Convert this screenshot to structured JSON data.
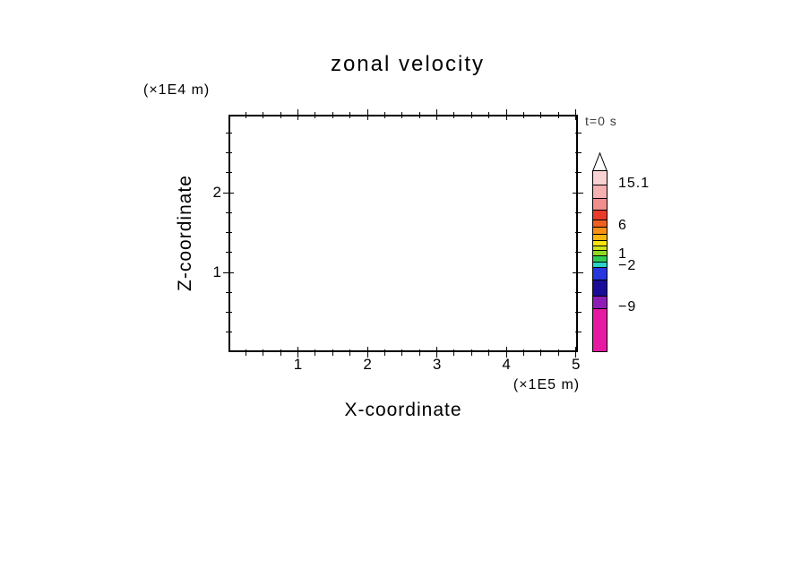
{
  "title": "zonal velocity",
  "annotations": {
    "time_label": "t=0 s",
    "y_unit_label": "(×1E4 m)",
    "x_unit_label": "(×1E5 m)"
  },
  "axes": {
    "x_label": "X-coordinate",
    "y_label": "Z-coordinate"
  },
  "chart_data": {
    "type": "heatmap",
    "title": "zonal velocity",
    "xlabel": "X-coordinate",
    "ylabel": "Z-coordinate",
    "x_unit": "×1E5 m",
    "y_unit": "×1E4 m",
    "xlim": [
      0,
      5.03
    ],
    "ylim": [
      0,
      2.98
    ],
    "x_ticks": [
      1,
      2,
      3,
      4,
      5
    ],
    "y_ticks": [
      1,
      2
    ],
    "x_minor_step": 0.25,
    "y_minor_step": 0.25,
    "time": "t=0 s",
    "field": "blank plot area — no contours or shading visible at t=0",
    "grid": false,
    "legend_position": "right colorbar",
    "colorbar": {
      "tick_labels": [
        "15.1",
        "6",
        "1",
        "−2",
        "−9"
      ],
      "segments": [
        {
          "color": "#f9d3d3",
          "height": 15
        },
        {
          "color": "#f5b0b0",
          "height": 15,
          "label": "15.1"
        },
        {
          "color": "#f08d8d",
          "height": 13
        },
        {
          "color": "#e93a2c",
          "height": 11
        },
        {
          "color": "#f0601f",
          "height": 8
        },
        {
          "color": "#f88f17",
          "height": 8,
          "label": "6"
        },
        {
          "color": "#fbb511",
          "height": 7
        },
        {
          "color": "#f7e30d",
          "height": 6
        },
        {
          "color": "#cde31a",
          "height": 5
        },
        {
          "color": "#8eda22",
          "height": 6
        },
        {
          "color": "#2ecc55",
          "height": 7,
          "label": "1"
        },
        {
          "color": "#2bd3c8",
          "height": 6
        },
        {
          "color": "#2736de",
          "height": 14,
          "label": "−2"
        },
        {
          "color": "#190d97",
          "height": 18
        },
        {
          "color": "#8d1fb7",
          "height": 14
        },
        {
          "color": "#e619a2",
          "height": 48,
          "label": "−9"
        }
      ]
    }
  }
}
